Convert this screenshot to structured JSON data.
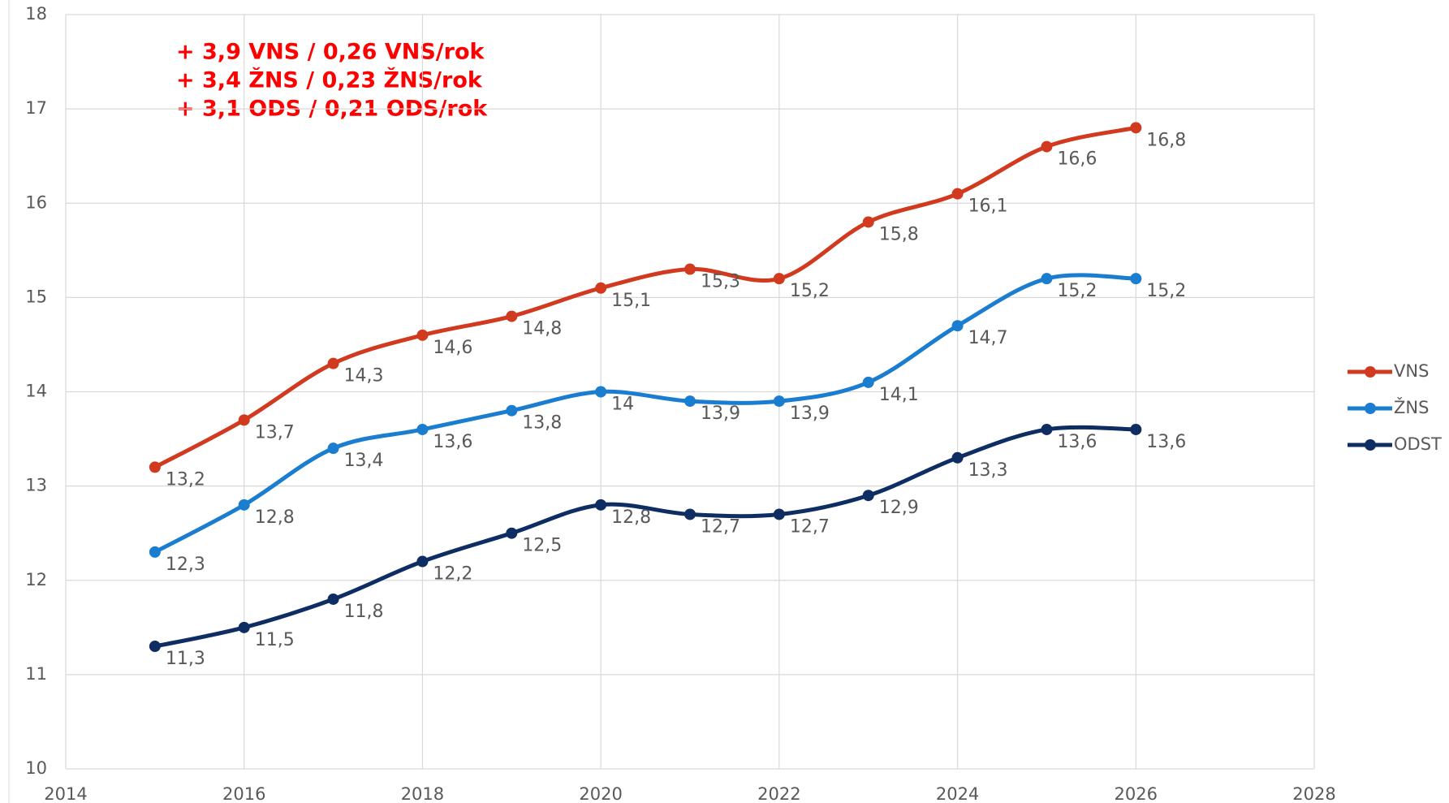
{
  "chart_data": {
    "type": "line",
    "annotations": [
      "+ 3,9 VNS / 0,26 VNS/rok",
      "+ 3,4 ŽNS / 0,23 ŽNS/rok",
      "+ 3,1 ODS / 0,21 ODS/rok"
    ],
    "x": [
      2015,
      2016,
      2017,
      2018,
      2019,
      2020,
      2021,
      2022,
      2023,
      2024,
      2025,
      2026
    ],
    "series": [
      {
        "name": "VNS",
        "color": "#d13a1f",
        "values": [
          13.2,
          13.7,
          14.3,
          14.6,
          14.8,
          15.1,
          15.3,
          15.2,
          15.8,
          16.1,
          16.6,
          16.8
        ],
        "value_labels": [
          "13,2",
          "13,7",
          "14,3",
          "14,6",
          "14,8",
          "15,1",
          "15,3",
          "15,2",
          "15,8",
          "16,1",
          "16,6",
          "16,8"
        ]
      },
      {
        "name": "ŽNS",
        "color": "#1a7dcf",
        "values": [
          12.3,
          12.8,
          13.4,
          13.6,
          13.8,
          14,
          13.9,
          13.9,
          14.1,
          14.7,
          15.2,
          15.2
        ],
        "value_labels": [
          "12,3",
          "12,8",
          "13,4",
          "13,6",
          "13,8",
          "14",
          "13,9",
          "13,9",
          "14,1",
          "14,7",
          "15,2",
          "15,2"
        ]
      },
      {
        "name": "ODST",
        "color": "#0d2d63",
        "values": [
          11.3,
          11.5,
          11.8,
          12.2,
          12.5,
          12.8,
          12.7,
          12.7,
          12.9,
          13.3,
          13.6,
          13.6
        ],
        "value_labels": [
          "11,3",
          "11,5",
          "11,8",
          "12,2",
          "12,5",
          "12,8",
          "12,7",
          "12,7",
          "12,9",
          "13,3",
          "13,6",
          "13,6"
        ]
      }
    ],
    "xlim": [
      2014,
      2028
    ],
    "xticks": [
      2014,
      2016,
      2018,
      2020,
      2022,
      2024,
      2026,
      2028
    ],
    "ylim": [
      10,
      18
    ],
    "yticks": [
      10,
      11,
      12,
      13,
      14,
      15,
      16,
      17,
      18
    ],
    "grid": true,
    "legend": "right",
    "smooth": true
  }
}
